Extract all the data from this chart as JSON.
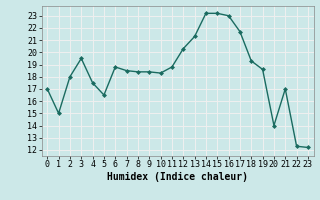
{
  "x": [
    0,
    1,
    2,
    3,
    4,
    5,
    6,
    7,
    8,
    9,
    10,
    11,
    12,
    13,
    14,
    15,
    16,
    17,
    18,
    19,
    20,
    21,
    22,
    23
  ],
  "y": [
    17.0,
    15.0,
    18.0,
    19.5,
    17.5,
    16.5,
    18.8,
    18.5,
    18.4,
    18.4,
    18.3,
    18.8,
    20.3,
    21.3,
    23.2,
    23.2,
    23.0,
    21.7,
    19.3,
    18.6,
    14.0,
    17.0,
    12.3,
    12.2
  ],
  "line_color": "#1a6b60",
  "marker": "D",
  "marker_size": 2.0,
  "linewidth": 1.0,
  "xlabel": "Humidex (Indice chaleur)",
  "xlim": [
    -0.5,
    23.5
  ],
  "ylim": [
    11.5,
    23.8
  ],
  "yticks": [
    12,
    13,
    14,
    15,
    16,
    17,
    18,
    19,
    20,
    21,
    22,
    23
  ],
  "xtick_labels": [
    "0",
    "1",
    "2",
    "3",
    "4",
    "5",
    "6",
    "7",
    "8",
    "9",
    "10",
    "11",
    "12",
    "13",
    "14",
    "15",
    "16",
    "17",
    "18",
    "19",
    "20",
    "21",
    "22",
    "23"
  ],
  "bg_color": "#cce8e8",
  "grid_color": "#f0f0f0",
  "label_fontsize": 7,
  "tick_fontsize": 6
}
